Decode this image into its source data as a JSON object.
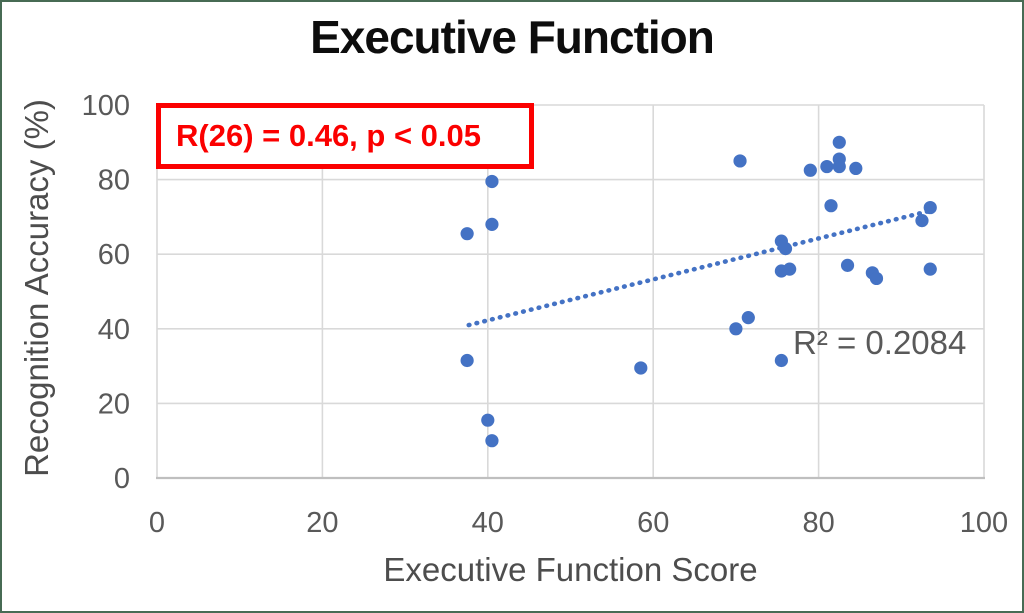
{
  "colors": {
    "accent": "#4472C4",
    "red": "#FB0000",
    "frame_border": "#476B54",
    "gridline": "#D9D9D9",
    "axis_line": "#BFBFBF",
    "tick_text": "#595959",
    "label_text": "#4D4D4D",
    "r2_text": "#595959",
    "title_text": "#0D0D0D"
  },
  "annotation_box": {
    "text": "R(26) = 0.46, p < 0.05"
  },
  "chart_data": {
    "type": "scatter",
    "title": "Executive Function",
    "xlabel": "Executive Function Score",
    "ylabel": "Recognition Accuracy (%)",
    "xlim": [
      0,
      100
    ],
    "ylim": [
      0,
      100
    ],
    "x_ticks": [
      0,
      20,
      40,
      60,
      80,
      100
    ],
    "y_ticks": [
      0,
      20,
      40,
      60,
      80,
      100
    ],
    "grid": true,
    "legend": "none",
    "marker_color": "#4472C4",
    "points": [
      [
        37.5,
        65.5
      ],
      [
        40.5,
        79.5
      ],
      [
        40.5,
        68
      ],
      [
        37.5,
        31.5
      ],
      [
        40,
        15.5
      ],
      [
        40.5,
        10
      ],
      [
        58.5,
        29.5
      ],
      [
        70,
        40
      ],
      [
        71.5,
        43
      ],
      [
        70.5,
        85
      ],
      [
        79,
        82.5
      ],
      [
        81,
        83.5
      ],
      [
        82.5,
        90
      ],
      [
        82.5,
        85.5
      ],
      [
        82.5,
        83.5
      ],
      [
        84.5,
        83
      ],
      [
        81.5,
        73
      ],
      [
        75.5,
        63.5
      ],
      [
        76,
        61.5
      ],
      [
        75.5,
        55.5
      ],
      [
        76.5,
        56
      ],
      [
        83.5,
        57
      ],
      [
        86.5,
        55
      ],
      [
        87,
        53.5
      ],
      [
        75.5,
        31.5
      ],
      [
        93.5,
        72.5
      ],
      [
        92.5,
        69
      ],
      [
        93.5,
        56
      ]
    ],
    "trendline": {
      "style": "dotted",
      "x1": 37.7,
      "y1": 41.0,
      "x2": 93.8,
      "y2": 71.8,
      "r_squared_label": "R² = 0.2084"
    }
  }
}
